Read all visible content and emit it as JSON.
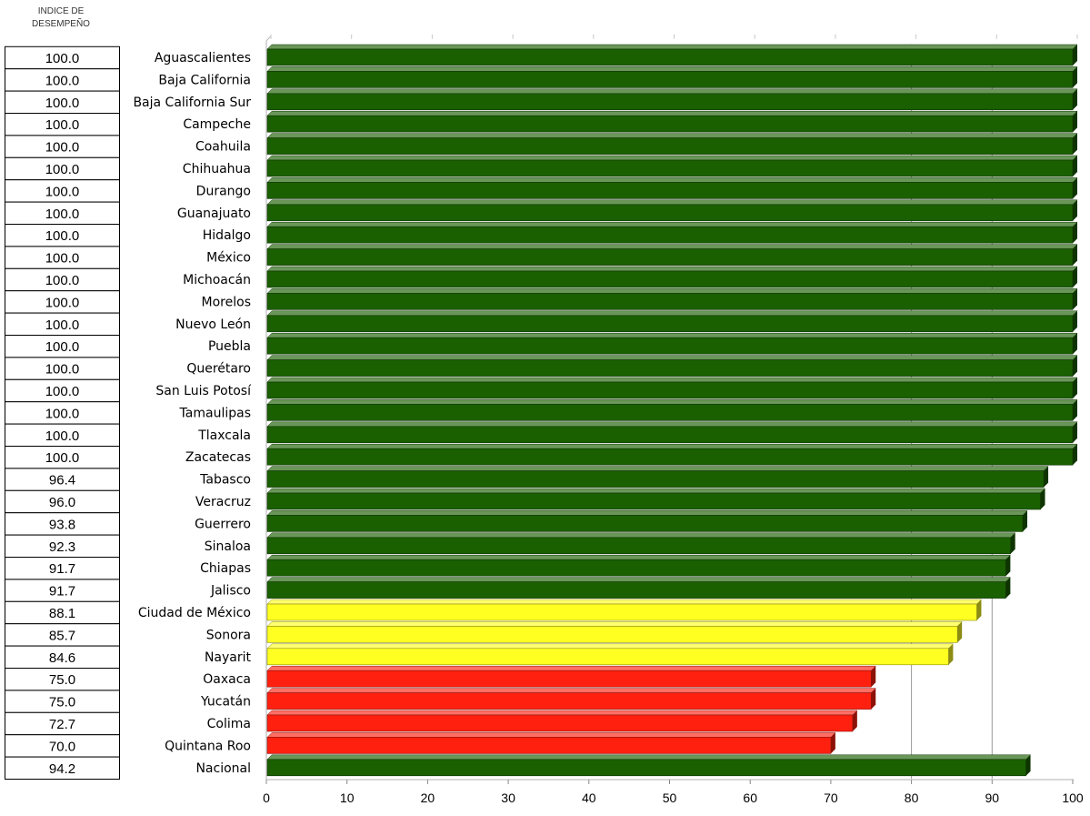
{
  "header": {
    "line1": "INDICE DE",
    "line2": "DESEMPEÑO"
  },
  "colors": {
    "green": "#1a5f00",
    "yellow": "#ffff22",
    "red": "#ff2010",
    "grid": "#999999",
    "box_border": "#000000"
  },
  "chart_data": {
    "type": "bar",
    "orientation": "horizontal",
    "xlim": [
      0,
      100
    ],
    "xticks": [
      "0",
      "10",
      "20",
      "30",
      "40",
      "50",
      "60",
      "70",
      "80",
      "90",
      "100"
    ],
    "grid": "vertical lines at 80 and 90",
    "categories": [
      "Aguascalientes",
      "Baja California",
      "Baja California Sur",
      "Campeche",
      "Coahuila",
      "Chihuahua",
      "Durango",
      "Guanajuato",
      "Hidalgo",
      "México",
      "Michoacán",
      "Morelos",
      "Nuevo León",
      "Puebla",
      "Querétaro",
      "San Luis Potosí",
      "Tamaulipas",
      "Tlaxcala",
      "Zacatecas",
      "Tabasco",
      "Veracruz",
      "Guerrero",
      "Sinaloa",
      "Chiapas",
      "Jalisco",
      "Ciudad de México",
      "Sonora",
      "Nayarit",
      "Oaxaca",
      "Yucatán",
      "Colima",
      "Quintana Roo",
      "Nacional"
    ],
    "values": [
      100,
      100,
      100,
      100,
      100,
      100,
      100,
      100,
      100,
      100,
      100,
      100,
      100,
      100,
      100,
      100,
      100,
      100,
      100,
      96.4,
      96.0,
      93.8,
      92.3,
      91.7,
      91.7,
      88.1,
      85.7,
      84.6,
      75.0,
      75.0,
      72.7,
      70.0,
      94.2
    ],
    "value_labels": [
      "100.0",
      "100.0",
      "100.0",
      "100.0",
      "100.0",
      "100.0",
      "100.0",
      "100.0",
      "100.0",
      "100.0",
      "100.0",
      "100.0",
      "100.0",
      "100.0",
      "100.0",
      "100.0",
      "100.0",
      "100.0",
      "100.0",
      "96.4",
      "96.0",
      "93.8",
      "92.3",
      "91.7",
      "91.7",
      "88.1",
      "85.7",
      "84.6",
      "75.0",
      "75.0",
      "72.7",
      "70.0",
      "94.2"
    ],
    "bar_colors": [
      "green",
      "green",
      "green",
      "green",
      "green",
      "green",
      "green",
      "green",
      "green",
      "green",
      "green",
      "green",
      "green",
      "green",
      "green",
      "green",
      "green",
      "green",
      "green",
      "green",
      "green",
      "green",
      "green",
      "green",
      "green",
      "yellow",
      "yellow",
      "yellow",
      "red",
      "red",
      "red",
      "red",
      "green"
    ]
  }
}
